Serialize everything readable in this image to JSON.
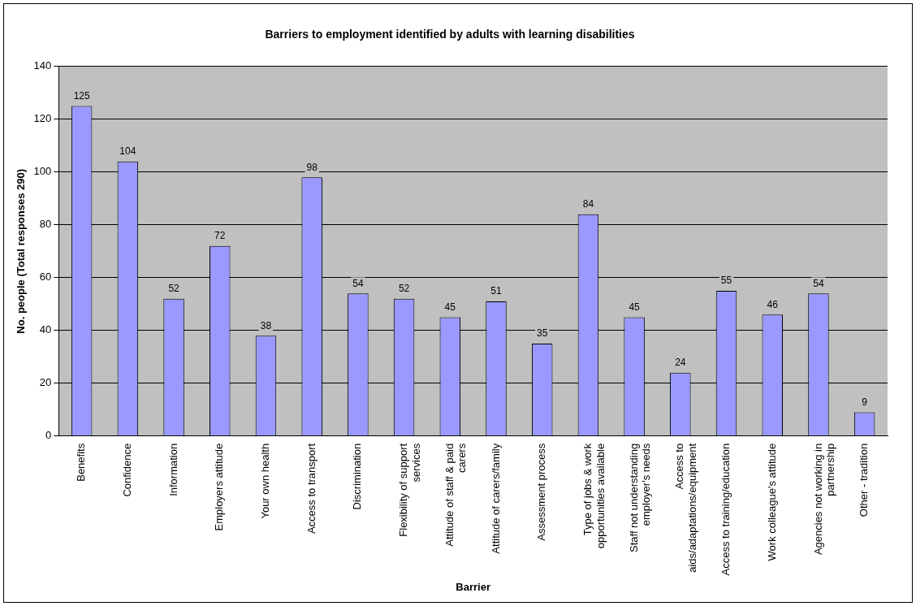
{
  "chart_data": {
    "type": "bar",
    "title": "Barriers to employment identified by adults with learning disabilities",
    "xlabel": "Barrier",
    "ylabel": "No. people (Total responses 290)",
    "categories": [
      "Benefits",
      "Confidence",
      "Information",
      "Employers attitude",
      "Your own health",
      "Access to transport",
      "Discrimination",
      "Flexibility of support services",
      "Attitude of staff & paid carers",
      "Attitude of carers/family",
      "Assessment process",
      "Type of jobs & work opportunities available",
      "Staff not understanding employer's needs",
      "Access to aids/adaptations/equipment",
      "Access to training/education",
      "Work colleague's attitude",
      "Agencies not working in partnership",
      "Other - tradition"
    ],
    "values": [
      125,
      104,
      52,
      72,
      38,
      98,
      54,
      52,
      45,
      51,
      35,
      84,
      45,
      24,
      55,
      46,
      54,
      9
    ],
    "color": "#9999ff",
    "ylim": [
      0,
      140
    ],
    "yticks": [
      0,
      20,
      40,
      60,
      80,
      100,
      120,
      140
    ],
    "grid": "y",
    "data_labels": true,
    "legend": false
  }
}
